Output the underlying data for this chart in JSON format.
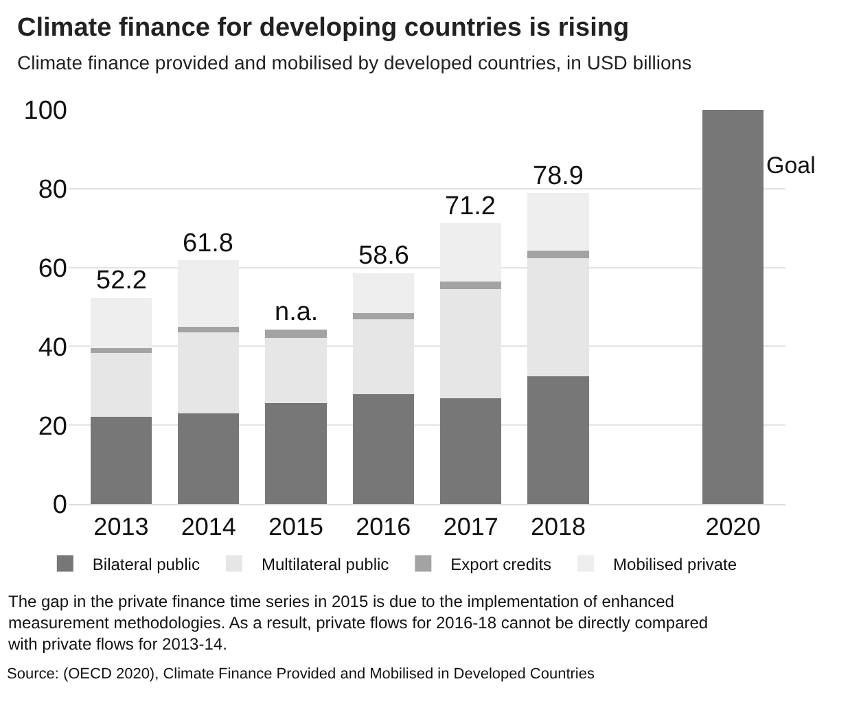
{
  "chart_data": {
    "type": "bar",
    "stacked": true,
    "title": "Climate finance for developing countries is rising",
    "subtitle": "Climate finance provided and mobilised by developed countries, in USD billions",
    "categories": [
      "2013",
      "2014",
      "2015",
      "2016",
      "2017",
      "2018",
      null,
      "2020"
    ],
    "series": [
      {
        "name": "Bilateral public",
        "color": "#777777",
        "values": [
          22.1,
          23.0,
          25.6,
          27.9,
          26.8,
          32.4,
          null,
          100
        ]
      },
      {
        "name": "Multilateral public",
        "color": "#e6e6e6",
        "values": [
          16.2,
          20.6,
          16.6,
          19.0,
          27.8,
          30.0,
          null,
          null
        ]
      },
      {
        "name": "Export credits",
        "color": "#a3a3a3",
        "values": [
          1.3,
          1.4,
          2.1,
          1.5,
          1.8,
          1.9,
          null,
          null
        ]
      },
      {
        "name": "Mobilised private",
        "color": "#eeeeee",
        "values": [
          12.6,
          16.8,
          null,
          10.2,
          14.8,
          14.6,
          null,
          null
        ]
      }
    ],
    "totals": [
      "52.2",
      "61.8",
      "n.a.",
      "58.6",
      "71.2",
      "78.9",
      null,
      null
    ],
    "ylim": [
      0,
      100
    ],
    "yticks": [
      0,
      20,
      40,
      60,
      80,
      100
    ],
    "grid": "y",
    "legend": "bottom",
    "annotations": [
      {
        "text": "Goal",
        "x": "2020",
        "y": 100
      },
      "The gap in the private finance time series in 2015 is due to the implementation of enhanced measurement methodologies. As a result, private flows for 2016-18 cannot be directly compared with private flows for 2013-14.",
      "Source: (OECD 2020), Climate Finance Provided and Mobilised in Developed Countries"
    ]
  }
}
